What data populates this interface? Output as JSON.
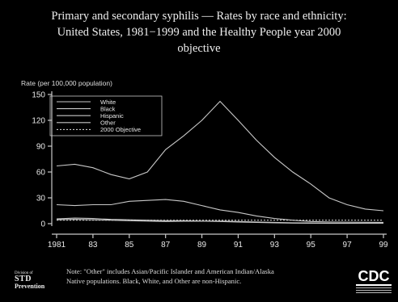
{
  "title_lines": [
    "Primary and secondary syphilis — Rates by race and ethnicity:",
    "United States, 1981−1999 and the Healthy People year 2000",
    "objective"
  ],
  "note_lines": [
    "Note: \"Other\" includes Asian/Pacific Islander and American Indian/Alaska",
    "Native populations. Black, White, and Other are non-Hispanic."
  ],
  "logo_std": {
    "line1": "Division of",
    "line2": "STD",
    "line3": "Prevention"
  },
  "logo_cdc": "CDC",
  "colors": {
    "background": "#000000",
    "lines": "#c8c8c8",
    "text": "#e8e8e8"
  },
  "chart_data": {
    "type": "line",
    "title": "Primary and secondary syphilis — Rates by race and ethnicity: United States, 1981−1999 and the Healthy People year 2000 objective",
    "xlabel": "",
    "ylabel": "Rate (per 100,000 population)",
    "x": [
      1981,
      1982,
      1983,
      1984,
      1985,
      1986,
      1987,
      1988,
      1989,
      1990,
      1991,
      1992,
      1993,
      1994,
      1995,
      1996,
      1997,
      1998,
      1999
    ],
    "xticks": [
      1981,
      1983,
      1985,
      1987,
      1989,
      1991,
      1993,
      1995,
      1997,
      1999
    ],
    "xtick_labels": [
      "1981",
      "83",
      "85",
      "87",
      "89",
      "91",
      "93",
      "95",
      "97",
      "99"
    ],
    "yticks": [
      0,
      30,
      60,
      90,
      120,
      150
    ],
    "ylim": [
      0,
      150
    ],
    "xlim": [
      1981,
      1999
    ],
    "grid": false,
    "legend_position": "top-left",
    "series": [
      {
        "name": "White",
        "style": "solid",
        "values": [
          4.5,
          5.0,
          4.5,
          4.0,
          3.5,
          3.0,
          2.5,
          2.8,
          2.9,
          2.5,
          2.0,
          1.5,
          1.0,
          0.7,
          0.5,
          0.4,
          0.4,
          0.5,
          0.5
        ]
      },
      {
        "name": "Black",
        "style": "solid",
        "values": [
          67,
          69,
          65,
          57,
          52,
          60,
          86,
          102,
          120,
          142,
          120,
          97,
          77,
          60,
          46,
          30,
          22,
          17,
          15
        ]
      },
      {
        "name": "Hispanic",
        "style": "solid",
        "values": [
          22,
          21,
          22,
          22,
          26,
          27,
          28,
          26,
          21,
          16,
          13,
          9,
          6,
          4,
          2.5,
          2.0,
          1.7,
          1.6,
          1.5
        ]
      },
      {
        "name": "Other",
        "style": "solid",
        "values": [
          5.5,
          6.5,
          6.0,
          5.0,
          4.5,
          4.0,
          3.5,
          3.5,
          3.0,
          3.0,
          2.5,
          2.0,
          1.5,
          1.0,
          0.8,
          0.6,
          0.5,
          0.5,
          0.5
        ]
      },
      {
        "name": "2000 Objective",
        "style": "dashed",
        "values": [
          4,
          4,
          4,
          4,
          4,
          4,
          4,
          4,
          4,
          4,
          4,
          4,
          4,
          4,
          4,
          4,
          4,
          4,
          4
        ]
      }
    ]
  }
}
